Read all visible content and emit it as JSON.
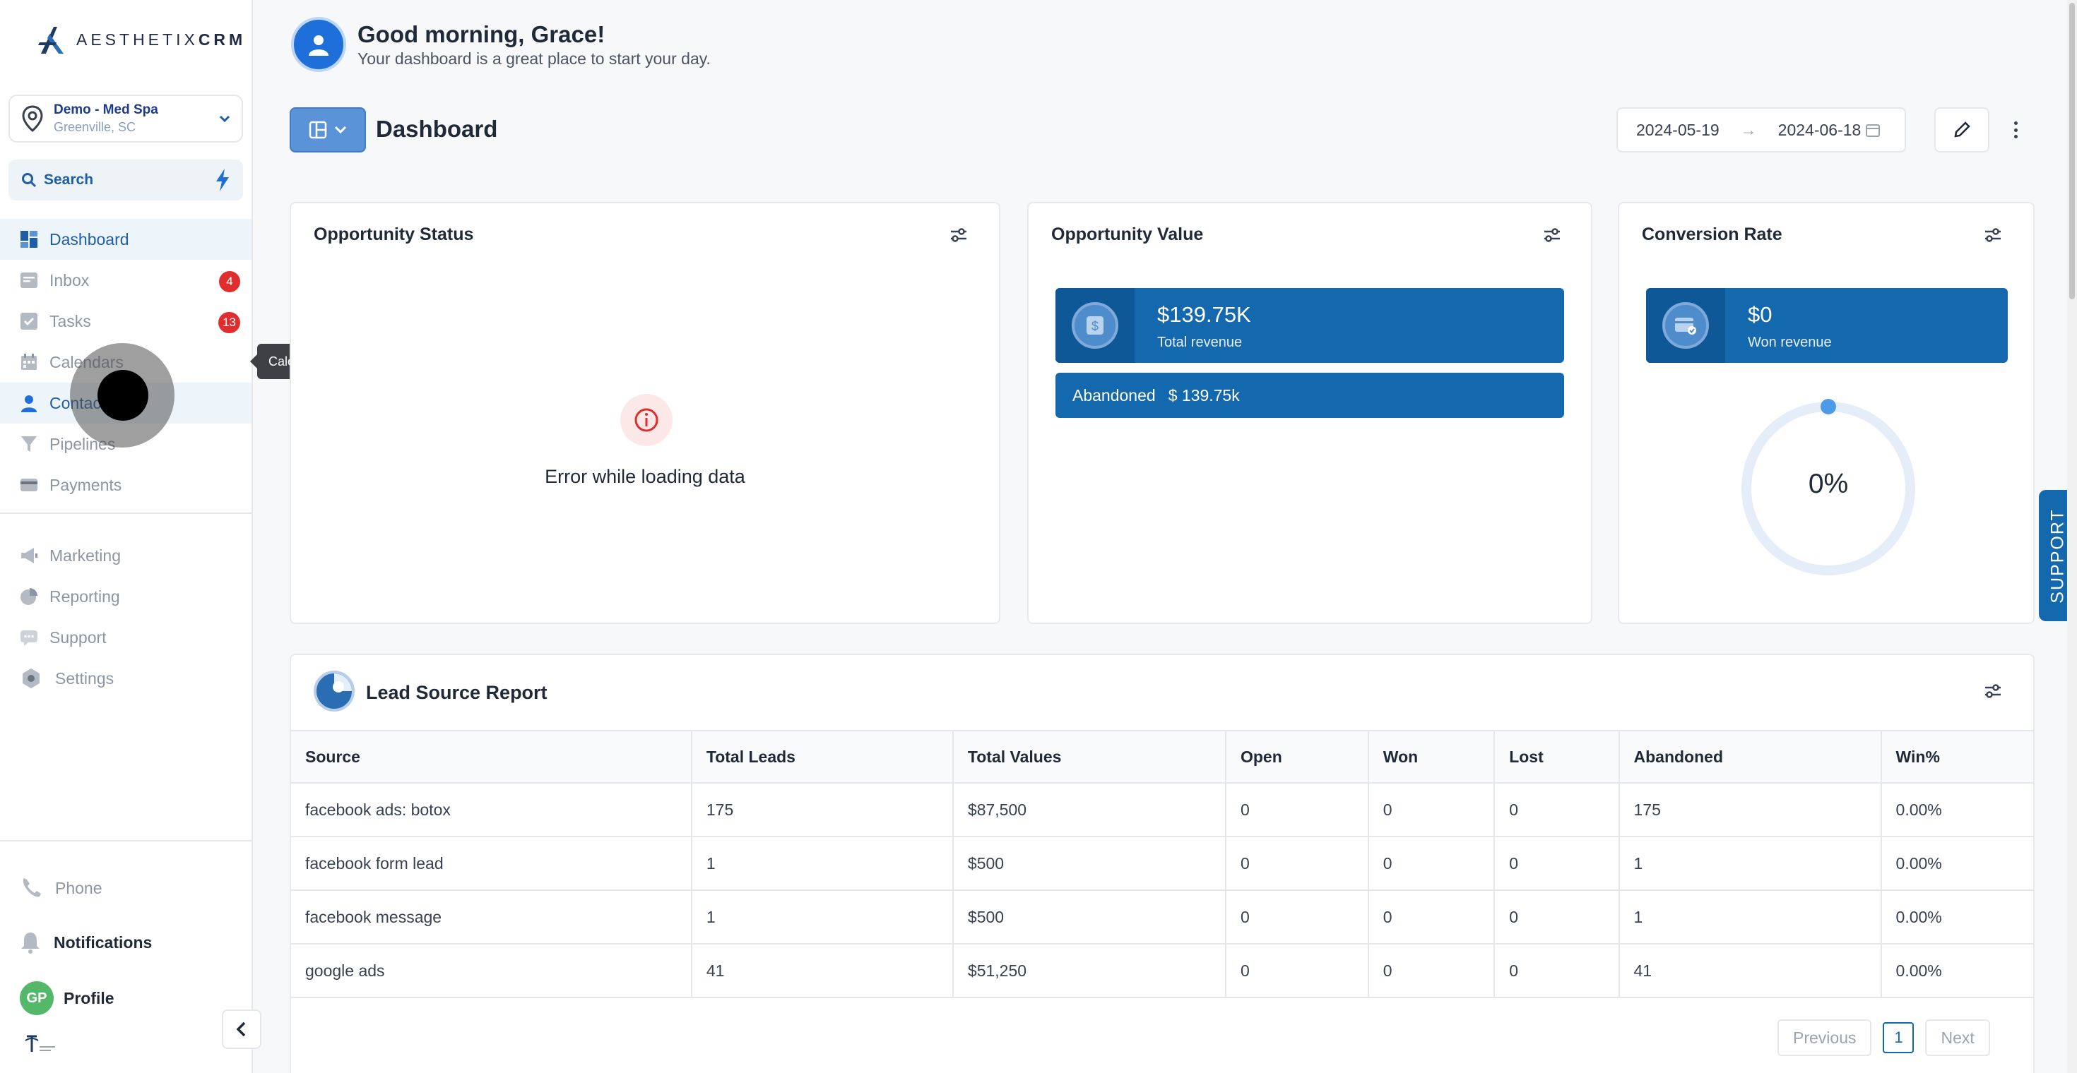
{
  "brand": {
    "logo_text_light": "AESTHETIX",
    "logo_text_bold": "CRM"
  },
  "location": {
    "name": "Demo - Med Spa",
    "city": "Greenville, SC"
  },
  "search": {
    "label": "Search"
  },
  "nav": {
    "dashboard": "Dashboard",
    "inbox": "Inbox",
    "inbox_badge": "4",
    "tasks": "Tasks",
    "tasks_badge": "13",
    "calendars": "Calendars",
    "contacts": "Contacts",
    "pipelines": "Pipelines",
    "payments": "Payments",
    "marketing": "Marketing",
    "reporting": "Reporting",
    "support": "Support",
    "settings": "Settings"
  },
  "tooltip": "Calendars",
  "bottom": {
    "phone": "Phone",
    "notifications": "Notifications",
    "profile": "Profile",
    "avatar_initials": "GP"
  },
  "header": {
    "greeting": "Good morning, Grace!",
    "subtitle": "Your dashboard is a great place to start your day.",
    "page_title": "Dashboard",
    "date_start": "2024-05-19",
    "date_end": "2024-06-18",
    "arrow": "→"
  },
  "opportunity_status": {
    "title": "Opportunity Status",
    "error": "Error while loading data"
  },
  "opportunity_value": {
    "title": "Opportunity Value",
    "total_value": "$139.75K",
    "total_label": "Total revenue",
    "abandoned_label": "Abandoned",
    "abandoned_value": "$ 139.75k"
  },
  "conversion_rate": {
    "title": "Conversion Rate",
    "won_value": "$0",
    "won_label": "Won revenue",
    "percent_text": "0%",
    "percent": 0
  },
  "support_tab": "SUPPORT",
  "lead_source": {
    "title": "Lead Source Report",
    "columns": [
      "Source",
      "Total Leads",
      "Total Values",
      "Open",
      "Won",
      "Lost",
      "Abandoned",
      "Win%"
    ],
    "rows": [
      [
        "facebook ads: botox",
        "175",
        "$87,500",
        "0",
        "0",
        "0",
        "175",
        "0.00%"
      ],
      [
        "facebook form lead",
        "1",
        "$500",
        "0",
        "0",
        "0",
        "1",
        "0.00%"
      ],
      [
        "facebook message",
        "1",
        "$500",
        "0",
        "0",
        "0",
        "1",
        "0.00%"
      ],
      [
        "google ads",
        "41",
        "$51,250",
        "0",
        "0",
        "0",
        "41",
        "0.00%"
      ]
    ]
  },
  "pagination": {
    "previous": "Previous",
    "page": "1",
    "next": "Next"
  },
  "colors": {
    "brand_blue": "#1468ae",
    "badge_red": "#e02d2d",
    "active_bg": "#edf5fb"
  }
}
